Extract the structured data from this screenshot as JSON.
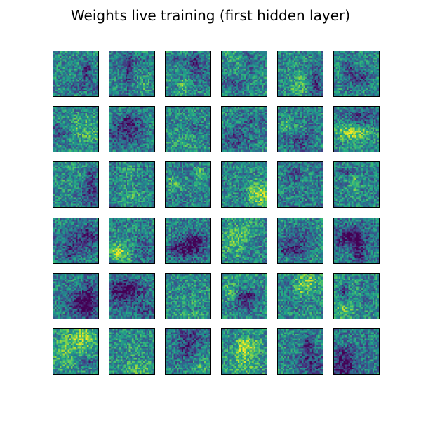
{
  "figure": {
    "title": "Weights live training (first hidden layer)"
  },
  "chart_data": {
    "type": "heatmap",
    "title": "Weights live training (first hidden layer)",
    "subplot_grid": {
      "rows": 6,
      "cols": 6
    },
    "panel_resolution": {
      "rows": 28,
      "cols": 28
    },
    "colormap": "viridis",
    "axes_visible": false,
    "grid": false,
    "legend": "none",
    "panels": [
      {
        "row": 1,
        "col": 1,
        "pattern": "light noise, faint dark curve upper middle"
      },
      {
        "row": 1,
        "col": 2,
        "pattern": "darker band across middle"
      },
      {
        "row": 1,
        "col": 3,
        "pattern": "dark stroke upper right"
      },
      {
        "row": 1,
        "col": 4,
        "pattern": "mixed noise, bright speckles"
      },
      {
        "row": 1,
        "col": 5,
        "pattern": "darker diagonal band"
      },
      {
        "row": 1,
        "col": 6,
        "pattern": "dark ring upper right"
      },
      {
        "row": 2,
        "col": 1,
        "pattern": "bright noise, faint dark line"
      },
      {
        "row": 2,
        "col": 2,
        "pattern": "bright speckles center"
      },
      {
        "row": 2,
        "col": 3,
        "pattern": "dark blob center"
      },
      {
        "row": 2,
        "col": 4,
        "pattern": "dark stroke upper"
      },
      {
        "row": 2,
        "col": 5,
        "pattern": "dark vertical stroke"
      },
      {
        "row": 2,
        "col": 6,
        "pattern": "dark arc lower"
      },
      {
        "row": 3,
        "col": 1,
        "pattern": "teal noise, dark spot center"
      },
      {
        "row": 3,
        "col": 2,
        "pattern": "teal noise"
      },
      {
        "row": 3,
        "col": 3,
        "pattern": "bright noise upper"
      },
      {
        "row": 3,
        "col": 4,
        "pattern": "dark lower edge"
      },
      {
        "row": 3,
        "col": 5,
        "pattern": "dark stroke lower right"
      },
      {
        "row": 3,
        "col": 6,
        "pattern": "bright speckles"
      },
      {
        "row": 4,
        "col": 1,
        "pattern": "dark blob center"
      },
      {
        "row": 4,
        "col": 2,
        "pattern": "dark band lower"
      },
      {
        "row": 4,
        "col": 3,
        "pattern": "mixed noise"
      },
      {
        "row": 4,
        "col": 4,
        "pattern": "bright speckles left"
      },
      {
        "row": 4,
        "col": 5,
        "pattern": "dark stroke left"
      },
      {
        "row": 4,
        "col": 6,
        "pattern": "dark ring"
      },
      {
        "row": 5,
        "col": 1,
        "pattern": "dark spot lower left"
      },
      {
        "row": 5,
        "col": 2,
        "pattern": "bright noise"
      },
      {
        "row": 5,
        "col": 3,
        "pattern": "dark stroke"
      },
      {
        "row": 5,
        "col": 4,
        "pattern": "dark stroke middle"
      },
      {
        "row": 5,
        "col": 5,
        "pattern": "bright speckles center"
      },
      {
        "row": 5,
        "col": 6,
        "pattern": "mixed noise"
      },
      {
        "row": 6,
        "col": 1,
        "pattern": "bright noise upper"
      },
      {
        "row": 6,
        "col": 2,
        "pattern": "bright speckles"
      },
      {
        "row": 6,
        "col": 3,
        "pattern": "mixed noise"
      },
      {
        "row": 6,
        "col": 4,
        "pattern": "bright noise"
      },
      {
        "row": 6,
        "col": 5,
        "pattern": "dark lower right"
      },
      {
        "row": 6,
        "col": 6,
        "pattern": "teal noise"
      }
    ]
  }
}
